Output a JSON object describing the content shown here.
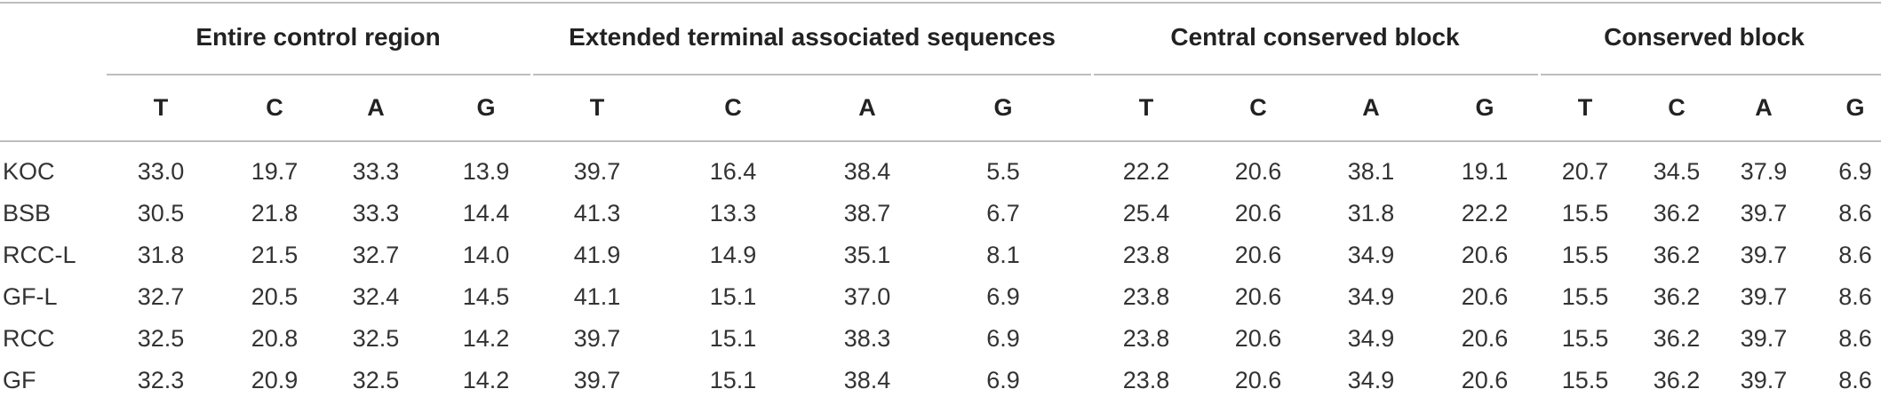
{
  "groups": [
    "Entire control region",
    "Extended terminal associated sequences",
    "Central conserved block",
    "Conserved block"
  ],
  "columns": [
    "T",
    "C",
    "A",
    "G",
    "T",
    "C",
    "A",
    "G",
    "T",
    "C",
    "A",
    "G",
    "T",
    "C",
    "A",
    "G"
  ],
  "rows": [
    {
      "label": "KOC",
      "values": [
        "33.0",
        "19.7",
        "33.3",
        "13.9",
        "39.7",
        "16.4",
        "38.4",
        "5.5",
        "22.2",
        "20.6",
        "38.1",
        "19.1",
        "20.7",
        "34.5",
        "37.9",
        "6.9"
      ]
    },
    {
      "label": "BSB",
      "values": [
        "30.5",
        "21.8",
        "33.3",
        "14.4",
        "41.3",
        "13.3",
        "38.7",
        "6.7",
        "25.4",
        "20.6",
        "31.8",
        "22.2",
        "15.5",
        "36.2",
        "39.7",
        "8.6"
      ]
    },
    {
      "label": "RCC-L",
      "values": [
        "31.8",
        "21.5",
        "32.7",
        "14.0",
        "41.9",
        "14.9",
        "35.1",
        "8.1",
        "23.8",
        "20.6",
        "34.9",
        "20.6",
        "15.5",
        "36.2",
        "39.7",
        "8.6"
      ]
    },
    {
      "label": "GF-L",
      "values": [
        "32.7",
        "20.5",
        "32.4",
        "14.5",
        "41.1",
        "15.1",
        "37.0",
        "6.9",
        "23.8",
        "20.6",
        "34.9",
        "20.6",
        "15.5",
        "36.2",
        "39.7",
        "8.6"
      ]
    },
    {
      "label": "RCC",
      "values": [
        "32.5",
        "20.8",
        "32.5",
        "14.2",
        "39.7",
        "15.1",
        "38.3",
        "6.9",
        "23.8",
        "20.6",
        "34.9",
        "20.6",
        "15.5",
        "36.2",
        "39.7",
        "8.6"
      ]
    },
    {
      "label": "GF",
      "values": [
        "32.3",
        "20.9",
        "32.5",
        "14.2",
        "39.7",
        "15.1",
        "38.4",
        "6.9",
        "23.8",
        "20.6",
        "34.9",
        "20.6",
        "15.5",
        "36.2",
        "39.7",
        "8.6"
      ]
    }
  ]
}
